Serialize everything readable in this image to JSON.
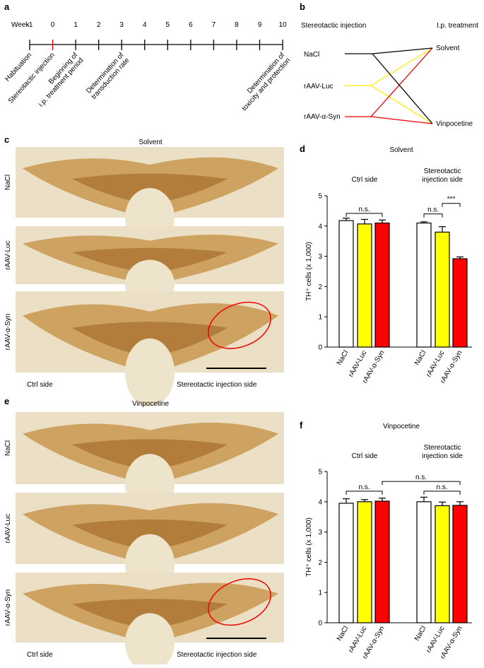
{
  "panel_a": {
    "label": "a",
    "axis_label": "Week",
    "weeks": [
      "-1",
      "0",
      "1",
      "2",
      "3",
      "4",
      "5",
      "6",
      "7",
      "8",
      "9",
      "10"
    ],
    "events": [
      [
        "Habituation"
      ],
      [
        "Stereotactic injection"
      ],
      [
        "Beginning of",
        "i.p. treatment period"
      ],
      [
        "Determination of",
        "transduction rate"
      ],
      [
        "Determination of",
        "toxicity and protection"
      ]
    ]
  },
  "panel_b": {
    "label": "b",
    "left_title": "Stereotactic injection",
    "right_title": "I.p. treatment",
    "injections": [
      "NaCl",
      "rAAV-Luc",
      "rAAV-α-Syn"
    ],
    "treatments": [
      "Solvent",
      "Vinpocetine"
    ]
  },
  "panel_c": {
    "label": "c",
    "title": "Solvent",
    "rows": [
      "NaCl",
      "rAAV-Luc",
      "rAAV-α-Syn"
    ],
    "left_footer": "Ctrl side",
    "right_footer": "Stereotactic injection side"
  },
  "panel_e": {
    "label": "e",
    "title": "Vinpocetine",
    "rows": [
      "NaCl",
      "rAAV-Luc",
      "rAAV-α-Syn"
    ],
    "left_footer": "Ctrl side",
    "right_footer": "Stereotactic injection side"
  },
  "chart_data": [
    {
      "panel_label": "d",
      "type": "bar",
      "title": "Solvent",
      "groups": [
        [
          "Ctrl side"
        ],
        [
          "Stereotactic",
          "injection side"
        ]
      ],
      "ylabel": "TH⁺ cells (x 1,000)",
      "ylim": [
        0,
        5
      ],
      "yticks": [
        0,
        1,
        2,
        3,
        4,
        5
      ],
      "series": [
        {
          "name": "NaCl",
          "color": "#ffffff",
          "values": [
            4.18,
            4.1
          ],
          "errors": [
            0.08,
            0.04
          ]
        },
        {
          "name": "rAAV-Luc",
          "color": "#ffff00",
          "values": [
            4.07,
            3.8
          ],
          "errors": [
            0.15,
            0.18
          ]
        },
        {
          "name": "rAAV-α-Syn",
          "color": "#ff0000",
          "values": [
            4.1,
            2.92
          ],
          "errors": [
            0.1,
            0.06
          ]
        }
      ],
      "annotations": [
        "n.s.",
        "n.s.",
        "***"
      ]
    },
    {
      "panel_label": "f",
      "type": "bar",
      "title": "Vinpocetine",
      "groups": [
        [
          "Ctrl side"
        ],
        [
          "Stereotactic",
          "injection side"
        ]
      ],
      "ylabel": "TH⁺ cells (x 1,000)",
      "ylim": [
        0,
        5
      ],
      "yticks": [
        0,
        1,
        2,
        3,
        4,
        5
      ],
      "series": [
        {
          "name": "NaCl",
          "color": "#ffffff",
          "values": [
            3.95,
            4.0
          ],
          "errors": [
            0.15,
            0.15
          ]
        },
        {
          "name": "rAAV-Luc",
          "color": "#ffff00",
          "values": [
            4.0,
            3.87
          ],
          "errors": [
            0.07,
            0.12
          ]
        },
        {
          "name": "rAAV-α-Syn",
          "color": "#ff0000",
          "values": [
            4.02,
            3.88
          ],
          "errors": [
            0.1,
            0.12
          ]
        }
      ],
      "annotations": [
        "n.s.",
        "n.s.",
        "n.s."
      ]
    }
  ]
}
